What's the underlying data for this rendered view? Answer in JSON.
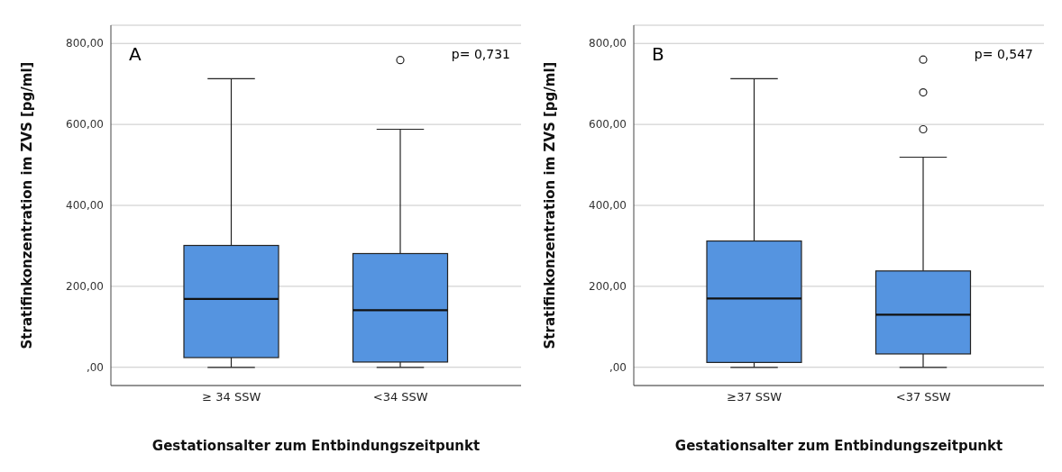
{
  "chart_data": [
    {
      "type": "box",
      "categories": [
        "≥ 34 SSW",
        "<34 SSW"
      ],
      "xlabel": "Gestationsalter zum Entbindungszeitpunkt",
      "ylabel": "Stratifinkonzentration im ZVS [pg/ml]",
      "annotations": [
        "A",
        "p= 0,731"
      ],
      "color": "#5594e0",
      "grid": "y",
      "marker": "circle",
      "ylim": [
        -45,
        845
      ],
      "yticks": [
        {
          "value": 0,
          "label": ",00"
        },
        {
          "value": 200,
          "label": "200,00"
        },
        {
          "value": 400,
          "label": "400,00"
        },
        {
          "value": 600,
          "label": "600,00"
        },
        {
          "value": 800,
          "label": "800,00"
        }
      ],
      "boxes": [
        {
          "low": 0,
          "q1": 24,
          "median": 169,
          "q3": 301,
          "high": 713
        },
        {
          "low": 0,
          "q1": 13,
          "median": 141,
          "q3": 281,
          "high": 588,
          "outliers": [
            759
          ]
        }
      ]
    },
    {
      "type": "box",
      "categories": [
        "≥37 SSW",
        "<37 SSW"
      ],
      "xlabel": "Gestationsalter zum Entbindungszeitpunkt",
      "ylabel": "Stratifinkonzentration im ZVS [pg/ml]",
      "annotations": [
        "B",
        "p= 0,547"
      ],
      "color": "#5594e0",
      "grid": "y",
      "marker": "circle",
      "ylim": [
        -45,
        845
      ],
      "yticks": [
        {
          "value": 0,
          "label": ",00"
        },
        {
          "value": 200,
          "label": "200,00"
        },
        {
          "value": 400,
          "label": "400,00"
        },
        {
          "value": 600,
          "label": "600,00"
        },
        {
          "value": 800,
          "label": "800,00"
        }
      ],
      "boxes": [
        {
          "low": 0,
          "q1": 12,
          "median": 170,
          "q3": 312,
          "high": 713
        },
        {
          "low": 0,
          "q1": 33,
          "median": 130,
          "q3": 238,
          "high": 519,
          "outliers": [
            760,
            679,
            588
          ]
        }
      ]
    }
  ]
}
